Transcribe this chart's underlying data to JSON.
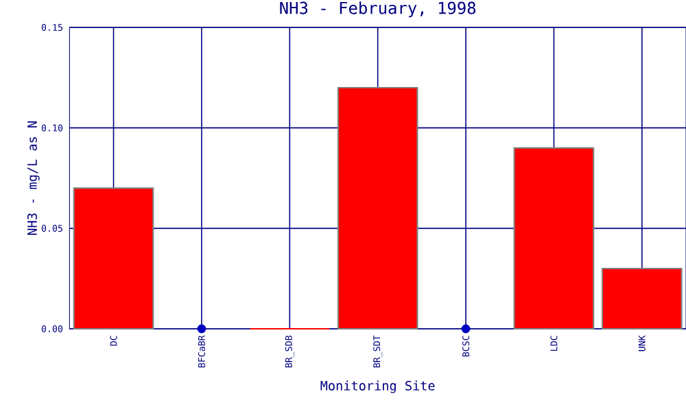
{
  "chart_data": {
    "type": "bar",
    "title": "NH3 - February, 1998",
    "xlabel": "Monitoring Site",
    "ylabel": "NH3 - mg/L as N",
    "categories": [
      "DC",
      "BFCaBR",
      "BR_SDB",
      "BR_SDT",
      "BCSC",
      "LDC",
      "UNK"
    ],
    "series": [
      {
        "color": "#ff0000",
        "values": [
          0.07,
          null,
          0,
          0.12,
          null,
          0.09,
          0.03
        ]
      },
      {
        "type": "scatter",
        "color": "#0000c0",
        "marker": "circle",
        "values": [
          null,
          0,
          null,
          null,
          0,
          null,
          null
        ]
      }
    ],
    "ylim": [
      0,
      0.15
    ],
    "yticks": [
      {
        "value": 0,
        "label": "0.00"
      },
      {
        "value": 0.05,
        "label": "0.05"
      },
      {
        "value": 0.1,
        "label": "0.10"
      },
      {
        "value": 0.15,
        "label": "0.15"
      }
    ],
    "grid": true
  }
}
